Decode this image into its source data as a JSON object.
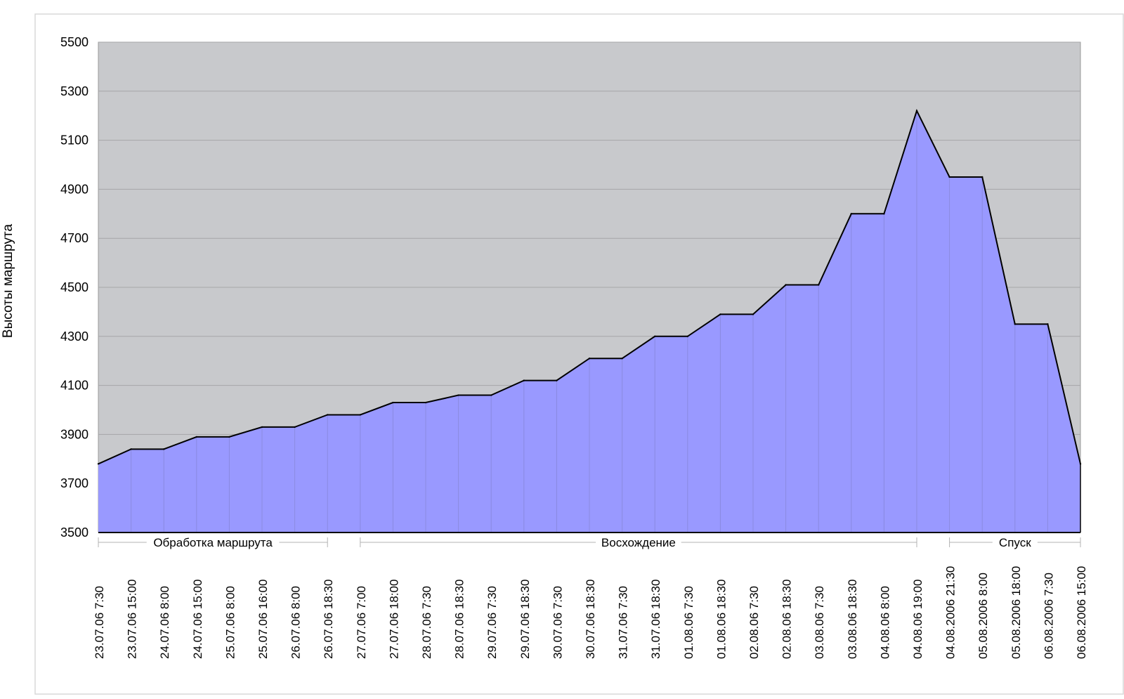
{
  "chart_data": {
    "type": "area",
    "title": "",
    "ylabel": "Высоты маршрута",
    "xlabel": "",
    "ylim": [
      3500,
      5500
    ],
    "yticks": [
      3500,
      3700,
      3900,
      4100,
      4300,
      4500,
      4700,
      4900,
      5100,
      5300,
      5500
    ],
    "grid": true,
    "colors": {
      "plot_bg": "#c8c9cc",
      "fill": "#9999ff",
      "line": "#000000",
      "gridline": "#a6a6a8",
      "frame": "#d9d9d9"
    },
    "categories": [
      "23.07.06 7:30",
      "23.07.06 15:00",
      "24.07.06 8:00",
      "24.07.06 15:00",
      "25.07.06 8:00",
      "25.07.06 16:00",
      "26.07.06 8:00",
      "26.07.06 18:30",
      "27.07.06 7:00",
      "27.07.06 18:00",
      "28.07.06 7:30",
      "28.07.06 18:30",
      "29.07.06 7:30",
      "29.07.06 18:30",
      "30.07.06 7:30",
      "30.07.06 18:30",
      "31.07.06 7:30",
      "31.07.06 18:30",
      "01.08.06 7:30",
      "01.08.06 18:30",
      "02.08.06 7:30",
      "02.08.06 18:30",
      "03.08.06 7:30",
      "03.08.06 18:30",
      "04.08.06 8:00",
      "04.08.06 19:00",
      "04.08.2006 21:30",
      "05.08.2006 8:00",
      "05.08.2006 18:00",
      "06.08.2006 7:30",
      "06.08.2006 15:00"
    ],
    "series": [
      {
        "values": [
          3780,
          3840,
          3840,
          3890,
          3890,
          3930,
          3930,
          3980,
          3980,
          4030,
          4030,
          4060,
          4060,
          4120,
          4120,
          4210,
          4210,
          4300,
          4300,
          4390,
          4390,
          4510,
          4510,
          4800,
          4800,
          5220,
          4950,
          4950,
          4350,
          4350,
          3780
        ]
      }
    ],
    "phases": [
      {
        "label": "Обработка маршрута",
        "from": 0,
        "to": 7
      },
      {
        "label": "Восхождение",
        "from": 8,
        "to": 25
      },
      {
        "label": "Спуск",
        "from": 26,
        "to": 30
      }
    ]
  }
}
